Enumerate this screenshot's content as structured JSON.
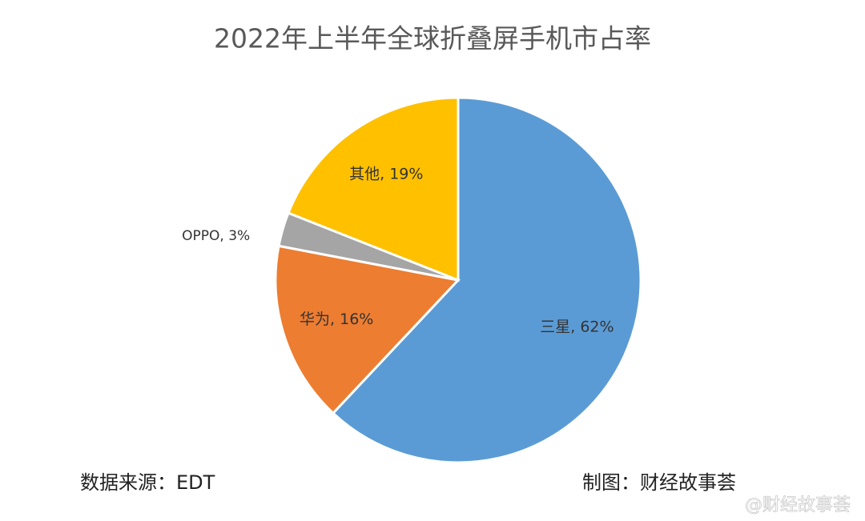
{
  "chart_data": {
    "type": "pie",
    "title": "2022年上半年全球折叠屏手机市占率",
    "values": [
      62,
      16,
      3,
      19
    ],
    "value_labels": [
      "三星, 62%",
      "华为, 16%",
      "OPPO, 3%",
      "其他, 19%"
    ],
    "colors": [
      "#5b9bd5",
      "#ed7d31",
      "#a5a5a5",
      "#ffc000"
    ],
    "source": "数据来源：EDT",
    "credit": "制图：财经故事荟",
    "watermark": "@财经故事荟"
  }
}
